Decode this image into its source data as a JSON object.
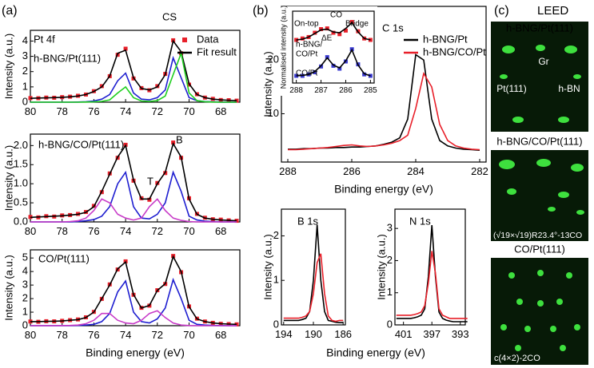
{
  "figure": {
    "panel_labels": [
      "(a)",
      "(b)",
      "(c)"
    ]
  },
  "leed": {
    "title": "LEED",
    "images": [
      {
        "caption": "h-BNG/Pt(111)",
        "labels": [
          "Pt(111)",
          "Gr",
          "h-BN"
        ]
      },
      {
        "caption": "h-BNG/CO/Pt(111)",
        "labels": [
          "(√19×√19)R23.4°-13CO"
        ]
      },
      {
        "caption": "CO/Pt(111)",
        "labels": [
          "c(4×2)-2CO"
        ]
      }
    ]
  },
  "chart_data": [
    {
      "type": "line",
      "ylabel": "Intensity (a.u.)",
      "annotations": [
        "Pt 4f",
        "h-BNG/Pt(111)",
        "CS"
      ],
      "legend": "upper right",
      "x": [
        80,
        79.5,
        79,
        78.5,
        78,
        77.5,
        77,
        76.5,
        76,
        75.5,
        75,
        74.5,
        74,
        73.5,
        73,
        72.5,
        72,
        71.5,
        71,
        70.5,
        70,
        69.5,
        69,
        68.5,
        68,
        67.5,
        67
      ],
      "xlim": [
        80,
        66.8
      ],
      "xticks": [
        80,
        78,
        76,
        74,
        72,
        70,
        68
      ],
      "ylim": [
        0,
        4.7
      ],
      "yticks": [
        0,
        1,
        2,
        3,
        4
      ],
      "series": [
        {
          "name": "Data",
          "style": "markers",
          "color": "#e8202a",
          "values": [
            0.27,
            0.26,
            0.3,
            0.29,
            0.33,
            0.36,
            0.42,
            0.5,
            0.72,
            1.05,
            1.7,
            3.1,
            3.5,
            1.55,
            0.92,
            0.78,
            1.05,
            1.85,
            4.05,
            3.2,
            1.15,
            0.52,
            0.3,
            0.22,
            0.14,
            0.13,
            0.1
          ]
        },
        {
          "name": "Fit result",
          "style": "line",
          "color": "#000000",
          "values": [
            0.25,
            0.27,
            0.28,
            0.3,
            0.32,
            0.35,
            0.4,
            0.5,
            0.7,
            1.0,
            1.7,
            3.2,
            3.4,
            1.6,
            0.9,
            0.8,
            1.0,
            1.8,
            4.0,
            3.3,
            1.2,
            0.5,
            0.3,
            0.2,
            0.15,
            0.12,
            0.1
          ]
        },
        {
          "style": "line",
          "color": "#1f1fd0",
          "values": [
            0,
            0,
            0,
            0,
            0,
            0,
            0.01,
            0.03,
            0.08,
            0.2,
            0.5,
            1.4,
            1.9,
            0.6,
            0.2,
            0.15,
            0.3,
            0.8,
            2.9,
            1.6,
            0.3,
            0.1,
            0.04,
            0.02,
            0.01,
            0,
            0
          ]
        },
        {
          "style": "line",
          "color": "#1fcf1f",
          "values": [
            0,
            0,
            0,
            0,
            0,
            0,
            0,
            0.01,
            0.02,
            0.05,
            0.15,
            0.6,
            1.0,
            0.3,
            0.08,
            0.05,
            0.1,
            0.4,
            1.8,
            3.2,
            0.6,
            0.1,
            0.03,
            0.01,
            0,
            0,
            0
          ]
        }
      ]
    },
    {
      "type": "line",
      "ylabel": "Intensity (a.u.)",
      "annotations": [
        "h-BNG/CO/Pt(111)",
        "B",
        "T"
      ],
      "x": [
        80,
        79.5,
        79,
        78.5,
        78,
        77.5,
        77,
        76.5,
        76,
        75.5,
        75,
        74.5,
        74,
        73.5,
        73,
        72.5,
        72,
        71.5,
        71,
        70.5,
        70,
        69.5,
        69,
        68.5,
        68,
        67.5,
        67
      ],
      "xlim": [
        80,
        66.8
      ],
      "xticks": [
        80,
        78,
        76,
        74,
        72,
        70,
        68
      ],
      "ylim": [
        0,
        2.3
      ],
      "yticks": [
        {
          "value": 0,
          "label": "0.0"
        },
        0.5,
        {
          "value": 1,
          "label": "1.0"
        },
        1.5,
        {
          "value": 2,
          "label": "2.0"
        }
      ],
      "series": [
        {
          "style": "markers",
          "color": "#e8202a",
          "values": [
            0.13,
            0.12,
            0.15,
            0.14,
            0.17,
            0.18,
            0.21,
            0.26,
            0.42,
            0.78,
            1.27,
            1.68,
            2.02,
            1.08,
            0.62,
            0.58,
            1.02,
            1.28,
            2.08,
            1.68,
            0.62,
            0.21,
            0.11,
            0.07,
            0.06,
            0.04,
            0.03
          ]
        },
        {
          "style": "line",
          "color": "#000000",
          "values": [
            0.12,
            0.13,
            0.14,
            0.15,
            0.16,
            0.18,
            0.2,
            0.25,
            0.4,
            0.8,
            1.25,
            1.7,
            2.0,
            1.1,
            0.6,
            0.6,
            1.0,
            1.3,
            2.05,
            1.7,
            0.6,
            0.2,
            0.1,
            0.07,
            0.05,
            0.04,
            0.03
          ]
        },
        {
          "style": "line",
          "color": "#1f1fd0",
          "values": [
            0,
            0,
            0,
            0,
            0,
            0,
            0.01,
            0.03,
            0.06,
            0.15,
            0.4,
            1.0,
            1.3,
            0.4,
            0.1,
            0.08,
            0.2,
            0.5,
            1.3,
            0.8,
            0.15,
            0.05,
            0.02,
            0.01,
            0,
            0,
            0
          ]
        },
        {
          "style": "line",
          "color": "#c83cc8",
          "values": [
            0,
            0,
            0,
            0,
            0,
            0.01,
            0.03,
            0.1,
            0.3,
            0.6,
            0.5,
            0.2,
            0.1,
            0.05,
            0.1,
            0.4,
            0.6,
            0.3,
            0.1,
            0.04,
            0.01,
            0,
            0,
            0,
            0,
            0,
            0
          ]
        }
      ]
    },
    {
      "type": "line",
      "ylabel": "Intensity (a.u.)",
      "xlabel": "Binding energy (eV)",
      "annotations": [
        "CO/Pt(111)"
      ],
      "x": [
        80,
        79.5,
        79,
        78.5,
        78,
        77.5,
        77,
        76.5,
        76,
        75.5,
        75,
        74.5,
        74,
        73.5,
        73,
        72.5,
        72,
        71.5,
        71,
        70.5,
        70,
        69.5,
        69,
        68.5,
        68,
        67.5,
        67
      ],
      "xlim": [
        80,
        66.8
      ],
      "xticks": [
        80,
        78,
        76,
        74,
        72,
        70,
        68
      ],
      "ylim": [
        0,
        5.6
      ],
      "yticks": [
        0,
        1,
        2,
        3,
        4,
        5
      ],
      "series": [
        {
          "style": "markers",
          "color": "#e8202a",
          "values": [
            0.31,
            0.29,
            0.33,
            0.32,
            0.36,
            0.41,
            0.46,
            0.62,
            1.02,
            1.98,
            3.05,
            4.15,
            4.75,
            2.28,
            1.32,
            1.48,
            2.62,
            3.08,
            5.15,
            3.95,
            1.42,
            0.52,
            0.31,
            0.21,
            0.14,
            0.12,
            0.1
          ]
        },
        {
          "style": "line",
          "color": "#000000",
          "values": [
            0.3,
            0.3,
            0.32,
            0.33,
            0.35,
            0.4,
            0.45,
            0.6,
            1.0,
            2.0,
            3.0,
            4.2,
            4.7,
            2.3,
            1.3,
            1.5,
            2.6,
            3.1,
            5.1,
            4.0,
            1.4,
            0.5,
            0.3,
            0.2,
            0.15,
            0.12,
            0.1
          ]
        },
        {
          "style": "line",
          "color": "#1f1fd0",
          "values": [
            0,
            0,
            0,
            0,
            0,
            0,
            0.02,
            0.05,
            0.1,
            0.3,
            0.9,
            2.5,
            3.3,
            1.0,
            0.3,
            0.2,
            0.5,
            1.3,
            3.4,
            2.0,
            0.4,
            0.1,
            0.05,
            0.02,
            0.01,
            0,
            0
          ]
        },
        {
          "style": "line",
          "color": "#c83cc8",
          "values": [
            0,
            0,
            0,
            0,
            0.01,
            0.02,
            0.05,
            0.15,
            0.4,
            0.9,
            0.9,
            0.4,
            0.2,
            0.15,
            0.4,
            0.9,
            1.1,
            0.6,
            0.2,
            0.05,
            0.01,
            0,
            0,
            0,
            0,
            0,
            0
          ]
        }
      ]
    },
    {
      "type": "line",
      "ylabel": "Intensity (a.u.)",
      "xlabel": "Binding energy (eV)",
      "annotations": [
        "C 1s"
      ],
      "legend": "upper right",
      "x": [
        288,
        287.75,
        287.5,
        287.25,
        287,
        286.75,
        286.5,
        286.25,
        286,
        285.75,
        285.5,
        285.25,
        285,
        284.75,
        284.5,
        284.25,
        284,
        283.75,
        283.5,
        283.25,
        283,
        282.75,
        282.5,
        282.25,
        282
      ],
      "xlim": [
        288.2,
        281.8
      ],
      "xticks": [
        288,
        286,
        284,
        282
      ],
      "ylim": [
        1,
        30
      ],
      "yticks": [
        10,
        20
      ],
      "series": [
        {
          "name": "h-BNG/Pt",
          "style": "line",
          "color": "#000000",
          "values": [
            3.4,
            3.4,
            3.5,
            3.5,
            3.6,
            3.6,
            3.7,
            3.7,
            3.8,
            3.8,
            3.9,
            4.0,
            4.3,
            4.7,
            5.5,
            9,
            21,
            20,
            9,
            5,
            4,
            3.6,
            3.4,
            3.3,
            3.2
          ]
        },
        {
          "name": "h-BNG/CO/Pt",
          "style": "line",
          "color": "#e8202a",
          "values": [
            3.3,
            3.3,
            3.4,
            3.5,
            3.6,
            3.7,
            3.9,
            4.1,
            4.2,
            4.0,
            3.9,
            4.0,
            4.2,
            4.5,
            5.0,
            6.0,
            11,
            17.5,
            15,
            8,
            5,
            4,
            3.6,
            3.4,
            3.3
          ]
        }
      ]
    },
    {
      "type": "line",
      "ylabel": "Normalised intensity (a.u.)",
      "annotations": [
        "On-top",
        "CO",
        "Bridge",
        "ΔE",
        "h-BNG/",
        "CO/Pt",
        "CO/Pt"
      ],
      "x": [
        288,
        287.75,
        287.5,
        287.25,
        287,
        286.75,
        286.5,
        286.25,
        286,
        285.75,
        285.5,
        285.25,
        285
      ],
      "xlim": [
        288.15,
        284.85
      ],
      "xticks": [
        288,
        287,
        286,
        285
      ],
      "ylim": [
        0,
        10
      ],
      "series": [
        {
          "style": "markers",
          "color": "#e8202a",
          "values": [
            6.0,
            6.2,
            6.4,
            7.0,
            7.5,
            7.6,
            7.0,
            6.8,
            7.3,
            8.5,
            7.2,
            6.2,
            6.0
          ]
        },
        {
          "style": "line",
          "color": "#000000",
          "values": [
            6.0,
            6.1,
            6.4,
            6.9,
            7.4,
            7.5,
            7.1,
            7.0,
            7.6,
            8.4,
            7.1,
            6.2,
            6.0
          ]
        },
        {
          "style": "markers",
          "color": "#3a3ad0",
          "values": [
            1.0,
            1.0,
            1.2,
            1.5,
            2.3,
            3.6,
            2.4,
            2.0,
            3.0,
            4.7,
            2.6,
            1.2,
            1.0
          ]
        },
        {
          "style": "line",
          "color": "#000000",
          "values": [
            1.0,
            1.05,
            1.2,
            1.6,
            2.4,
            3.5,
            2.5,
            2.1,
            3.1,
            4.6,
            2.5,
            1.3,
            1.0
          ]
        }
      ]
    },
    {
      "type": "line",
      "ylabel": "Intensity (a.u.)",
      "xlabel": "Binding energy (eV)",
      "annotations": [
        "B 1s"
      ],
      "x": [
        194,
        193.5,
        193,
        192.5,
        192,
        191.5,
        191,
        190.5,
        190,
        189.5,
        189,
        188.5,
        188,
        187.5,
        187,
        186.5,
        186
      ],
      "xlim": [
        194.3,
        185.7
      ],
      "xticks": [
        194,
        190,
        186
      ],
      "ylim": [
        0,
        2.6
      ],
      "yticks": [
        0,
        1,
        2
      ],
      "series": [
        {
          "style": "line",
          "color": "#000000",
          "values": [
            0.1,
            0.1,
            0.1,
            0.1,
            0.1,
            0.12,
            0.15,
            0.3,
            1.0,
            2.25,
            1.0,
            0.3,
            0.1,
            0.08,
            0.06,
            0.05,
            0.05
          ]
        },
        {
          "style": "line",
          "color": "#e8202a",
          "values": [
            0.15,
            0.15,
            0.15,
            0.15,
            0.15,
            0.17,
            0.2,
            0.3,
            0.7,
            1.4,
            1.6,
            0.7,
            0.2,
            0.1,
            0.08,
            0.1,
            0.1
          ]
        }
      ]
    },
    {
      "type": "line",
      "ylabel": "Intensity (a.u.)",
      "annotations": [
        "N 1s"
      ],
      "x": [
        402,
        401.5,
        401,
        400.5,
        400,
        399.5,
        399,
        398.5,
        398,
        397.5,
        397,
        396.5,
        396,
        395.5,
        395,
        394.5,
        394,
        393.5,
        393,
        392.5,
        392
      ],
      "xlim": [
        402.2,
        392.3
      ],
      "xticks": [
        401,
        397,
        393
      ],
      "ylim": [
        0,
        3.6
      ],
      "yticks": [
        0,
        1,
        2,
        3
      ],
      "series": [
        {
          "style": "line",
          "color": "#000000",
          "values": [
            0.2,
            0.2,
            0.2,
            0.2,
            0.2,
            0.22,
            0.25,
            0.3,
            0.5,
            1.5,
            3.1,
            1.5,
            0.4,
            0.2,
            0.15,
            0.12,
            0.1,
            0.1,
            0.1,
            0.1,
            0.1
          ]
        },
        {
          "style": "line",
          "color": "#e8202a",
          "values": [
            0.3,
            0.3,
            0.3,
            0.3,
            0.3,
            0.32,
            0.35,
            0.4,
            0.6,
            1.3,
            2.3,
            1.6,
            0.5,
            0.3,
            0.25,
            0.2,
            0.2,
            0.2,
            0.2,
            0.2,
            0.2
          ]
        }
      ]
    }
  ]
}
